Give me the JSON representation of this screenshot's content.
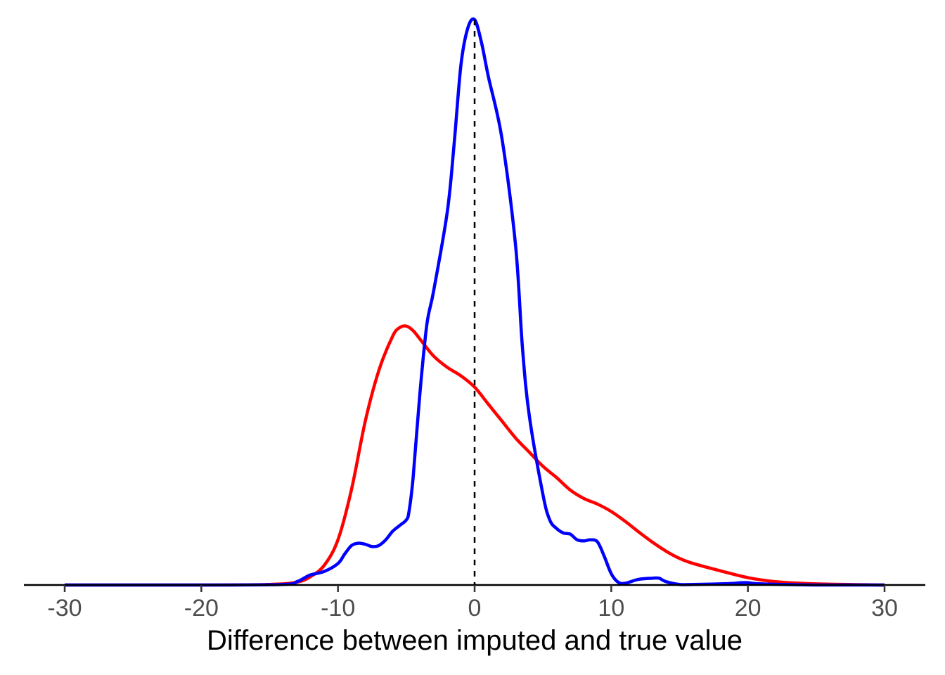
{
  "chart_data": {
    "type": "line",
    "subtype": "density",
    "title": "",
    "xlabel": "Difference between imputed and true value",
    "ylabel": "",
    "xlim": [
      -30,
      30
    ],
    "x_ticks": [
      -30,
      -20,
      -10,
      0,
      10,
      20,
      30
    ],
    "x_tick_labels": [
      "-30",
      "-20",
      "-10",
      "0",
      "10",
      "20",
      "30"
    ],
    "ylim": [
      0,
      1
    ],
    "y_axis_shown": false,
    "grid": false,
    "legend": "none",
    "reference_line": {
      "x": 0,
      "style": "dashed",
      "color": "#000000"
    },
    "series": [
      {
        "color": "#ff0000",
        "x": [
          -30,
          -20,
          -15,
          -13,
          -12,
          -11,
          -10,
          -9,
          -8,
          -7,
          -6,
          -5.5,
          -5,
          -4.5,
          -4,
          -3,
          -2,
          -1,
          0,
          1,
          2,
          3,
          4,
          5,
          6,
          7,
          8,
          9,
          10,
          11,
          12,
          13,
          14,
          15,
          16,
          18,
          20,
          22,
          25,
          30
        ],
        "y": [
          0,
          0,
          0.001,
          0.005,
          0.015,
          0.035,
          0.08,
          0.17,
          0.29,
          0.38,
          0.44,
          0.455,
          0.458,
          0.45,
          0.435,
          0.405,
          0.385,
          0.37,
          0.35,
          0.32,
          0.29,
          0.26,
          0.235,
          0.21,
          0.19,
          0.168,
          0.153,
          0.143,
          0.13,
          0.113,
          0.094,
          0.076,
          0.06,
          0.047,
          0.038,
          0.025,
          0.013,
          0.006,
          0.002,
          0
        ]
      },
      {
        "color": "#0000ff",
        "x": [
          -30,
          -20,
          -14,
          -13,
          -12.5,
          -12,
          -11,
          -10,
          -9.5,
          -9,
          -8.5,
          -8,
          -7.5,
          -7,
          -6.5,
          -6,
          -5.5,
          -5,
          -4.8,
          -4.5,
          -4,
          -3.5,
          -3,
          -2,
          -1.5,
          -1,
          -0.5,
          0,
          0.5,
          1,
          2,
          3,
          3.5,
          4,
          5,
          5.5,
          6,
          6.5,
          7,
          7.5,
          8,
          8.5,
          9,
          9.5,
          10,
          10.5,
          11,
          12,
          13,
          13.5,
          14,
          15,
          16,
          18,
          19,
          19.5,
          20,
          21,
          25,
          30
        ],
        "y": [
          0,
          0,
          0.001,
          0.006,
          0.012,
          0.018,
          0.024,
          0.038,
          0.055,
          0.07,
          0.074,
          0.072,
          0.068,
          0.07,
          0.08,
          0.095,
          0.105,
          0.115,
          0.13,
          0.19,
          0.34,
          0.46,
          0.52,
          0.66,
          0.78,
          0.92,
          0.985,
          1.0,
          0.96,
          0.9,
          0.79,
          0.6,
          0.42,
          0.3,
          0.16,
          0.115,
          0.1,
          0.092,
          0.09,
          0.08,
          0.078,
          0.08,
          0.076,
          0.05,
          0.02,
          0.005,
          0.003,
          0.01,
          0.012,
          0.012,
          0.006,
          0.001,
          0.001,
          0.002,
          0.003,
          0.004,
          0.004,
          0.002,
          0,
          0
        ]
      }
    ]
  }
}
